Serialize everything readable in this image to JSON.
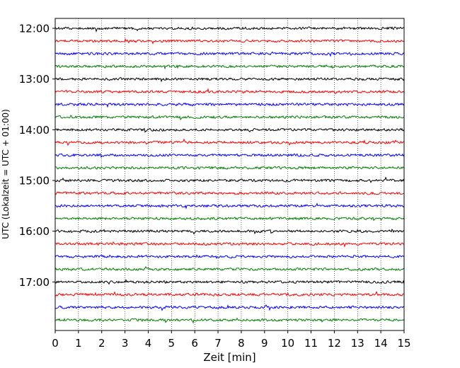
{
  "chart_data": {
    "type": "line",
    "title": "",
    "xlabel": "Zeit  [min]",
    "ylabel": "UTC (Lokalzeit = UTC + 01:00)",
    "xlim": [
      0,
      15
    ],
    "x_ticks": [
      "0",
      "1",
      "2",
      "3",
      "4",
      "5",
      "6",
      "7",
      "8",
      "9",
      "10",
      "11",
      "12",
      "13",
      "14",
      "15"
    ],
    "y_tick_labels": [
      "12:00",
      "13:00",
      "14:00",
      "15:00",
      "16:00",
      "17:00"
    ],
    "y_tick_rows": [
      0,
      4,
      8,
      12,
      16,
      20
    ],
    "grid": "vertical dotted at each minute",
    "trace_interval_min": 15,
    "trace_start": "12:00",
    "trace_colors": [
      "#000000",
      "#ff0000",
      "#0000ff",
      "#007f00"
    ],
    "traces": [
      {
        "label": "12:00"
      },
      {
        "label": "12:15"
      },
      {
        "label": "12:30"
      },
      {
        "label": "12:45"
      },
      {
        "label": "13:00"
      },
      {
        "label": "13:15"
      },
      {
        "label": "13:30"
      },
      {
        "label": "13:45"
      },
      {
        "label": "14:00"
      },
      {
        "label": "14:15"
      },
      {
        "label": "14:30"
      },
      {
        "label": "14:45"
      },
      {
        "label": "15:00"
      },
      {
        "label": "15:15"
      },
      {
        "label": "15:30"
      },
      {
        "label": "15:45"
      },
      {
        "label": "16:00"
      },
      {
        "label": "16:15"
      },
      {
        "label": "16:30"
      },
      {
        "label": "16:45"
      },
      {
        "label": "17:00"
      },
      {
        "label": "17:15"
      },
      {
        "label": "17:30"
      },
      {
        "label": "17:45"
      }
    ]
  }
}
